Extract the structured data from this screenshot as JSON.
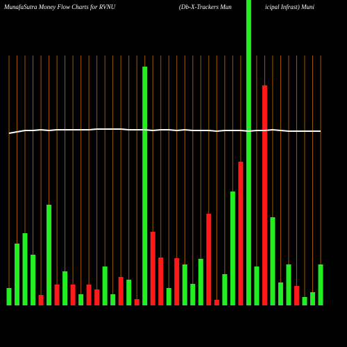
{
  "chart_data": {
    "type": "bar",
    "title_parts": [
      "MunafaSutra  Money Flow  Charts for RVNU",
      "(Db-X-Trackers Mun",
      "icipal Infrast) Muni"
    ],
    "categories": [
      null,
      null,
      null,
      null,
      null,
      null,
      null,
      null,
      null,
      null,
      null,
      null,
      null,
      null,
      null,
      null,
      null,
      null,
      null,
      null,
      null,
      null,
      null,
      null,
      null,
      null,
      null,
      null,
      null,
      null,
      null,
      null,
      null,
      null,
      null,
      null,
      null,
      null,
      null,
      null
    ],
    "series": [
      {
        "values": [
          25,
          89,
          104,
          73,
          15,
          145,
          30,
          49,
          30,
          16,
          30,
          23,
          56,
          16,
          41,
          37,
          9,
          344,
          106,
          69,
          25,
          68,
          59,
          31,
          67,
          132,
          8,
          45,
          164,
          207,
          440,
          56,
          317,
          127,
          33,
          59,
          28,
          12,
          19,
          59
        ],
        "colors": [
          "#22ee22",
          "#22ee22",
          "#22ee22",
          "#22ee22",
          "#ff1a1a",
          "#22ee22",
          "#ff1a1a",
          "#22ee22",
          "#ff1a1a",
          "#22ee22",
          "#ff1a1a",
          "#ff1a1a",
          "#22ee22",
          "#22ee22",
          "#ff1a1a",
          "#22ee22",
          "#ff1a1a",
          "#22ee22",
          "#ff1a1a",
          "#ff1a1a",
          "#22ee22",
          "#ff1a1a",
          "#22ee22",
          "#22ee22",
          "#22ee22",
          "#ff1a1a",
          "#ff1a1a",
          "#22ee22",
          "#22ee22",
          "#ff1a1a",
          "#22ee22",
          "#22ee22",
          "#ff1a1a",
          "#22ee22",
          "#22ee22",
          "#22ee22",
          "#ff1a1a",
          "#22ee22",
          "#22ee22",
          "#22ee22"
        ]
      },
      {
        "type": "line",
        "color": "#ffffff",
        "values": [
          248,
          250,
          252,
          252,
          253,
          252,
          253,
          253,
          253,
          253,
          253,
          254,
          254,
          254,
          254,
          253,
          253,
          253,
          252,
          253,
          253,
          252,
          253,
          252,
          252,
          252,
          251,
          252,
          252,
          252,
          251,
          252,
          252,
          253,
          252,
          251,
          251,
          251,
          251,
          251
        ]
      }
    ],
    "grid_color": "#a05a00",
    "ylim": [
      0,
      440
    ],
    "grid": true
  }
}
